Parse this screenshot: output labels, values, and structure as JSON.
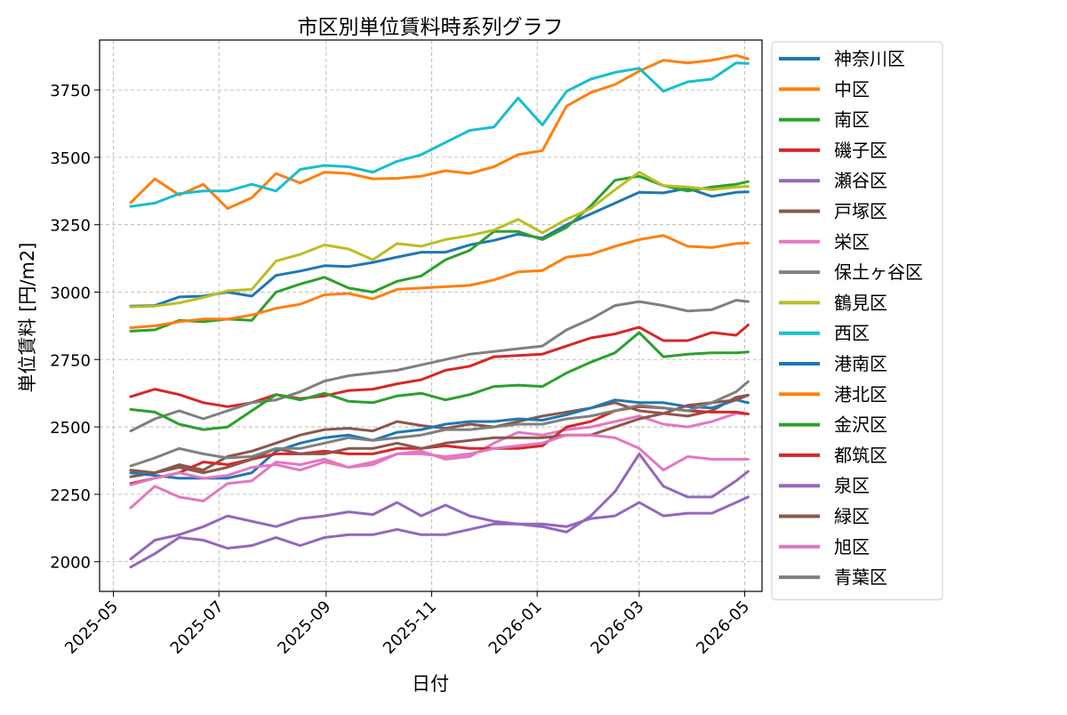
{
  "chart_data": {
    "type": "line",
    "title": "市区別単位賃料時系列グラフ",
    "xlabel": "日付",
    "ylabel": "単位賃料 [円/m2]",
    "x_tick_labels": [
      "2025-05",
      "2025-07",
      "2025-09",
      "2025-11",
      "2026-01",
      "2026-03",
      "2026-05"
    ],
    "x_tick_dates": [
      "2025-05-01",
      "2025-07-01",
      "2025-09-01",
      "2025-11-01",
      "2026-01-01",
      "2026-03-01",
      "2026-05-01"
    ],
    "x_range": [
      "2025-04-23",
      "2026-05-11"
    ],
    "ylim": [
      1890,
      3935
    ],
    "y_ticks": [
      2000,
      2250,
      2500,
      2750,
      3000,
      3250,
      3500,
      3750
    ],
    "grid": true,
    "legend_position": "outside-right",
    "x": [
      "2025-05-11",
      "2025-05-25",
      "2025-06-08",
      "2025-06-22",
      "2025-07-06",
      "2025-07-20",
      "2025-08-03",
      "2025-08-17",
      "2025-08-31",
      "2025-09-14",
      "2025-09-28",
      "2025-10-12",
      "2025-10-26",
      "2025-11-09",
      "2025-11-23",
      "2025-12-07",
      "2025-12-21",
      "2026-01-04",
      "2026-01-18",
      "2026-02-01",
      "2026-02-15",
      "2026-03-01",
      "2026-03-15",
      "2026-03-29",
      "2026-04-12",
      "2026-04-26",
      "2026-05-03"
    ],
    "series": [
      {
        "name": "神奈川区",
        "color": "#1f77b4",
        "values": [
          2948,
          2950,
          2982,
          2985,
          3000,
          2985,
          3062,
          3078,
          3098,
          3095,
          3110,
          3130,
          3148,
          3148,
          3175,
          3192,
          3215,
          3200,
          3250,
          3290,
          3330,
          3370,
          3368,
          3385,
          3355,
          3370,
          3372
        ]
      },
      {
        "name": "中区",
        "color": "#ff7f0e",
        "values": [
          3332,
          3420,
          3360,
          3400,
          3310,
          3350,
          3440,
          3405,
          3445,
          3440,
          3420,
          3422,
          3430,
          3450,
          3440,
          3465,
          3510,
          3525,
          3690,
          3740,
          3770,
          3820,
          3860,
          3850,
          3860,
          3878,
          3865
        ]
      },
      {
        "name": "南区",
        "color": "#2ca02c",
        "values": [
          2855,
          2860,
          2895,
          2890,
          2900,
          2895,
          3000,
          3030,
          3055,
          3015,
          3000,
          3040,
          3060,
          3120,
          3155,
          3225,
          3225,
          3195,
          3240,
          3320,
          3415,
          3430,
          3395,
          3375,
          3390,
          3400,
          3410
        ]
      },
      {
        "name": "磯子区",
        "color": "#d62728",
        "values": [
          2612,
          2640,
          2620,
          2590,
          2575,
          2590,
          2620,
          2605,
          2615,
          2635,
          2640,
          2660,
          2675,
          2710,
          2725,
          2760,
          2765,
          2770,
          2800,
          2830,
          2845,
          2870,
          2820,
          2820,
          2850,
          2840,
          2878
        ]
      },
      {
        "name": "瀬谷区",
        "color": "#9467bd",
        "values": [
          2010,
          2080,
          2100,
          2130,
          2170,
          2150,
          2130,
          2160,
          2170,
          2185,
          2175,
          2220,
          2170,
          2210,
          2170,
          2150,
          2140,
          2130,
          2110,
          2170,
          2260,
          2400,
          2280,
          2240,
          2240,
          2300,
          2335
        ]
      },
      {
        "name": "戸塚区",
        "color": "#8c564b",
        "values": [
          2315,
          2330,
          2360,
          2340,
          2390,
          2410,
          2440,
          2470,
          2490,
          2495,
          2485,
          2520,
          2505,
          2495,
          2510,
          2500,
          2520,
          2540,
          2555,
          2570,
          2590,
          2560,
          2550,
          2540,
          2560,
          2610,
          2618
        ]
      },
      {
        "name": "栄区",
        "color": "#e377c2",
        "values": [
          2200,
          2280,
          2240,
          2225,
          2290,
          2300,
          2370,
          2360,
          2380,
          2350,
          2370,
          2400,
          2410,
          2380,
          2390,
          2440,
          2480,
          2470,
          2490,
          2500,
          2520,
          2540,
          2510,
          2500,
          2520,
          2550,
          2548
        ]
      },
      {
        "name": "保土ヶ谷区",
        "color": "#7f7f7f",
        "values": [
          2485,
          2530,
          2560,
          2530,
          2560,
          2590,
          2600,
          2630,
          2670,
          2690,
          2700,
          2710,
          2730,
          2750,
          2770,
          2780,
          2790,
          2800,
          2860,
          2900,
          2950,
          2965,
          2950,
          2930,
          2935,
          2970,
          2965
        ]
      },
      {
        "name": "鶴見区",
        "color": "#bcbd22",
        "values": [
          2945,
          2948,
          2960,
          2980,
          3005,
          3010,
          3115,
          3140,
          3175,
          3160,
          3120,
          3180,
          3170,
          3195,
          3210,
          3230,
          3270,
          3220,
          3270,
          3310,
          3380,
          3445,
          3395,
          3390,
          3380,
          3390,
          3392
        ]
      },
      {
        "name": "西区",
        "color": "#17becf",
        "values": [
          3318,
          3330,
          3365,
          3375,
          3375,
          3400,
          3375,
          3455,
          3470,
          3465,
          3445,
          3485,
          3510,
          3555,
          3600,
          3612,
          3720,
          3620,
          3745,
          3790,
          3815,
          3830,
          3745,
          3780,
          3790,
          3850,
          3848
        ]
      },
      {
        "name": "港南区",
        "color": "#1f77b4",
        "values": [
          2330,
          2320,
          2310,
          2310,
          2310,
          2330,
          2410,
          2440,
          2460,
          2470,
          2450,
          2480,
          2490,
          2510,
          2520,
          2520,
          2530,
          2525,
          2545,
          2570,
          2600,
          2590,
          2590,
          2575,
          2570,
          2600,
          2590
        ]
      },
      {
        "name": "港北区",
        "color": "#ff7f0e",
        "values": [
          2868,
          2875,
          2890,
          2900,
          2900,
          2915,
          2940,
          2955,
          2990,
          2995,
          2975,
          3010,
          3015,
          3020,
          3025,
          3045,
          3075,
          3080,
          3130,
          3140,
          3170,
          3195,
          3210,
          3170,
          3165,
          3180,
          3182
        ]
      },
      {
        "name": "金沢区",
        "color": "#2ca02c",
        "values": [
          2565,
          2555,
          2510,
          2490,
          2500,
          2560,
          2620,
          2600,
          2625,
          2595,
          2590,
          2615,
          2625,
          2600,
          2620,
          2650,
          2655,
          2650,
          2700,
          2740,
          2775,
          2850,
          2760,
          2770,
          2775,
          2775,
          2778
        ]
      },
      {
        "name": "都筑区",
        "color": "#d62728",
        "values": [
          2290,
          2310,
          2330,
          2370,
          2360,
          2380,
          2400,
          2400,
          2410,
          2400,
          2400,
          2420,
          2420,
          2430,
          2420,
          2420,
          2420,
          2430,
          2500,
          2520,
          2560,
          2575,
          2570,
          2560,
          2555,
          2555,
          2548
        ]
      },
      {
        "name": "泉区",
        "color": "#9467bd",
        "values": [
          1980,
          2030,
          2090,
          2080,
          2050,
          2060,
          2090,
          2060,
          2090,
          2100,
          2100,
          2120,
          2100,
          2100,
          2120,
          2140,
          2140,
          2140,
          2130,
          2160,
          2170,
          2220,
          2170,
          2180,
          2180,
          2220,
          2240
        ]
      },
      {
        "name": "緑区",
        "color": "#8c564b",
        "values": [
          2340,
          2330,
          2350,
          2330,
          2350,
          2380,
          2420,
          2400,
          2400,
          2420,
          2420,
          2440,
          2420,
          2440,
          2450,
          2460,
          2460,
          2460,
          2470,
          2470,
          2500,
          2530,
          2550,
          2580,
          2590,
          2600,
          2618
        ]
      },
      {
        "name": "旭区",
        "color": "#e377c2",
        "values": [
          2285,
          2310,
          2330,
          2310,
          2320,
          2350,
          2360,
          2340,
          2370,
          2350,
          2360,
          2400,
          2400,
          2390,
          2400,
          2420,
          2430,
          2440,
          2470,
          2470,
          2460,
          2420,
          2340,
          2390,
          2380,
          2380,
          2380
        ]
      },
      {
        "name": "青葉区",
        "color": "#7f7f7f",
        "values": [
          2355,
          2385,
          2420,
          2400,
          2385,
          2390,
          2420,
          2420,
          2440,
          2460,
          2450,
          2460,
          2470,
          2490,
          2490,
          2500,
          2510,
          2510,
          2530,
          2540,
          2560,
          2580,
          2570,
          2560,
          2590,
          2630,
          2668
        ]
      }
    ]
  }
}
